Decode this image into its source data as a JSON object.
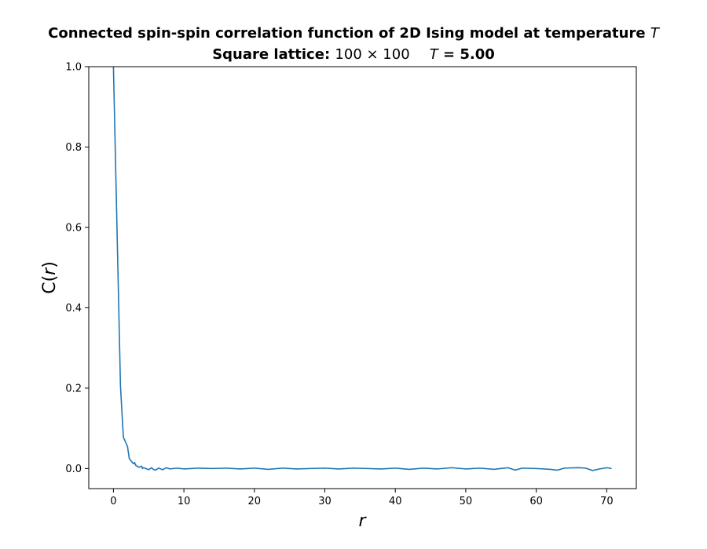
{
  "chart_data": {
    "type": "line",
    "title_line1_text": "Connected spin-spin correlation function of 2D Ising model at temperature",
    "title_line1_var": "T",
    "title_line2_label": "Square lattice:",
    "title_line2_size": "100 × 100",
    "title_line2_var": "T",
    "title_line2_value": "= 5.00",
    "xlabel": "r",
    "ylabel_prefix": "C(",
    "ylabel_var": "r",
    "ylabel_suffix": ")",
    "xlim": [
      -3.5,
      74.2
    ],
    "ylim": [
      -0.05,
      1.0
    ],
    "xticks": [
      0,
      10,
      20,
      30,
      40,
      50,
      60,
      70
    ],
    "yticks": [
      0.0,
      0.2,
      0.4,
      0.6,
      0.8,
      1.0
    ],
    "ytick_labels": [
      "0.0",
      "0.2",
      "0.4",
      "0.6",
      "0.8",
      "1.0"
    ],
    "grid": false,
    "series": [
      {
        "color": "#1f77b4",
        "x": [
          0,
          1,
          1.41,
          2,
          2.24,
          2.83,
          3,
          3.16,
          3.61,
          4,
          4.12,
          4.24,
          4.47,
          5,
          5.39,
          5.66,
          6,
          6.4,
          7,
          7.5,
          8,
          9,
          10,
          12,
          14,
          16,
          18,
          20,
          22,
          24,
          26,
          28,
          30,
          32,
          34,
          36,
          38,
          40,
          42,
          44,
          46,
          48,
          50,
          52,
          54,
          56,
          57,
          58,
          60,
          62,
          63,
          64,
          66,
          67,
          68,
          69,
          70,
          70.7
        ],
        "y": [
          1.0,
          0.205,
          0.078,
          0.055,
          0.025,
          0.012,
          0.015,
          0.008,
          0.003,
          0.006,
          0.0,
          0.002,
          0.001,
          -0.003,
          0.002,
          -0.002,
          -0.004,
          0.001,
          -0.003,
          0.002,
          -0.001,
          0.001,
          -0.001,
          0.001,
          0.0,
          0.001,
          -0.001,
          0.001,
          -0.002,
          0.001,
          -0.001,
          0.0,
          0.001,
          -0.001,
          0.001,
          0.0,
          -0.001,
          0.001,
          -0.002,
          0.001,
          -0.001,
          0.002,
          -0.001,
          0.001,
          -0.002,
          0.002,
          -0.004,
          0.001,
          0.0,
          -0.002,
          -0.004,
          0.001,
          0.002,
          0.001,
          -0.005,
          -0.001,
          0.002,
          0.0
        ]
      }
    ]
  }
}
